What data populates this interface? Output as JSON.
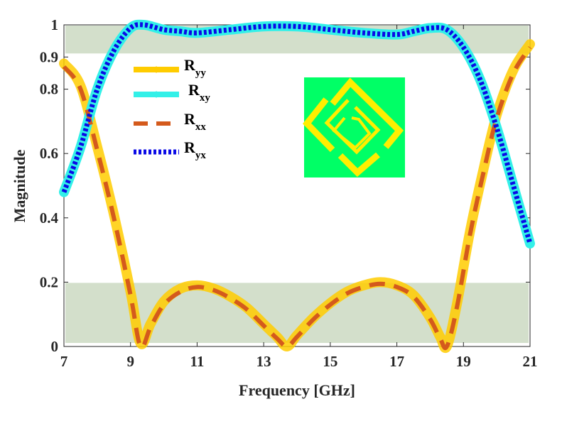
{
  "chart_data": {
    "type": "line",
    "xlabel": "Frequency [GHz]",
    "ylabel": "Magnitude",
    "xlim": [
      7,
      21
    ],
    "ylim": [
      0,
      1
    ],
    "xticks": [
      "7",
      "9",
      "11",
      "13",
      "15",
      "17",
      "19",
      "21"
    ],
    "yticks": [
      "0",
      "0.2",
      "0.4",
      "0.6",
      "0.8",
      "0.9",
      "1"
    ],
    "grid": false,
    "legend_position": "top-left",
    "shaded_bands": [
      {
        "ymin": 0.9,
        "ymax": 1.0,
        "color": "#d3dfcb"
      },
      {
        "ymin": 0.0,
        "ymax": 0.2,
        "color": "#d3dfcb"
      }
    ],
    "series": [
      {
        "name": "Ryy",
        "label_main": "R",
        "label_sub": "yy",
        "color": "#ffcc00",
        "style": "solid-thick",
        "x": [
          7.0,
          7.5,
          8.0,
          8.5,
          9.0,
          9.3,
          9.6,
          10.0,
          10.5,
          11.0,
          11.5,
          12.0,
          12.5,
          13.0,
          13.4,
          13.7,
          14.0,
          14.5,
          15.0,
          15.5,
          16.0,
          16.5,
          17.0,
          17.5,
          18.0,
          18.3,
          18.5,
          18.8,
          19.2,
          19.6,
          20.0,
          20.5,
          21.0
        ],
        "y": [
          0.88,
          0.81,
          0.62,
          0.41,
          0.17,
          0.01,
          0.07,
          0.14,
          0.18,
          0.19,
          0.18,
          0.155,
          0.12,
          0.07,
          0.03,
          0.0,
          0.035,
          0.09,
          0.135,
          0.17,
          0.19,
          0.2,
          0.19,
          0.16,
          0.09,
          0.03,
          0.0,
          0.13,
          0.36,
          0.55,
          0.72,
          0.86,
          0.94
        ]
      },
      {
        "name": "Rxy",
        "label_main": "R",
        "label_sub": "xy",
        "color": "#33f0e8",
        "style": "solid-thick",
        "x": [
          7.0,
          7.5,
          8.0,
          8.5,
          9.0,
          9.4,
          10.0,
          10.5,
          11.0,
          12.0,
          13.0,
          14.0,
          15.0,
          16.0,
          17.0,
          17.5,
          18.0,
          18.5,
          19.0,
          19.5,
          20.0,
          20.5,
          21.0
        ],
        "y": [
          0.48,
          0.62,
          0.8,
          0.92,
          0.99,
          1.0,
          0.985,
          0.98,
          0.975,
          0.985,
          0.995,
          0.995,
          0.985,
          0.975,
          0.97,
          0.98,
          0.99,
          0.985,
          0.93,
          0.83,
          0.68,
          0.5,
          0.32
        ]
      },
      {
        "name": "Rxx",
        "label_main": "R",
        "label_sub": "xx",
        "color": "#d45a1c",
        "style": "dashed",
        "x": [
          7.0,
          7.5,
          8.0,
          8.5,
          9.0,
          9.3,
          9.6,
          10.0,
          10.5,
          11.0,
          11.5,
          12.0,
          12.5,
          13.0,
          13.4,
          13.7,
          14.0,
          14.5,
          15.0,
          15.5,
          16.0,
          16.5,
          17.0,
          17.5,
          18.0,
          18.3,
          18.5,
          18.8,
          19.2,
          19.6,
          20.0,
          20.5,
          21.0
        ],
        "y": [
          0.87,
          0.8,
          0.61,
          0.4,
          0.16,
          0.0,
          0.06,
          0.13,
          0.17,
          0.185,
          0.175,
          0.15,
          0.115,
          0.065,
          0.025,
          0.0,
          0.03,
          0.085,
          0.13,
          0.165,
          0.185,
          0.195,
          0.185,
          0.155,
          0.085,
          0.025,
          0.0,
          0.12,
          0.35,
          0.54,
          0.71,
          0.85,
          0.93
        ]
      },
      {
        "name": "Ryx",
        "label_main": "R",
        "label_sub": "yx",
        "color": "#0a0ae6",
        "style": "dotted",
        "x": [
          7.0,
          7.5,
          8.0,
          8.5,
          9.0,
          9.4,
          10.0,
          10.5,
          11.0,
          12.0,
          13.0,
          14.0,
          15.0,
          16.0,
          17.0,
          17.5,
          18.0,
          18.5,
          19.0,
          19.5,
          20.0,
          20.5,
          21.0
        ],
        "y": [
          0.48,
          0.62,
          0.8,
          0.92,
          0.99,
          1.0,
          0.985,
          0.98,
          0.975,
          0.985,
          0.995,
          0.995,
          0.985,
          0.975,
          0.97,
          0.98,
          0.99,
          0.985,
          0.93,
          0.83,
          0.68,
          0.5,
          0.32
        ]
      }
    ],
    "inset": {
      "background": "#00ff66",
      "pattern_color": "#ffee00"
    }
  }
}
